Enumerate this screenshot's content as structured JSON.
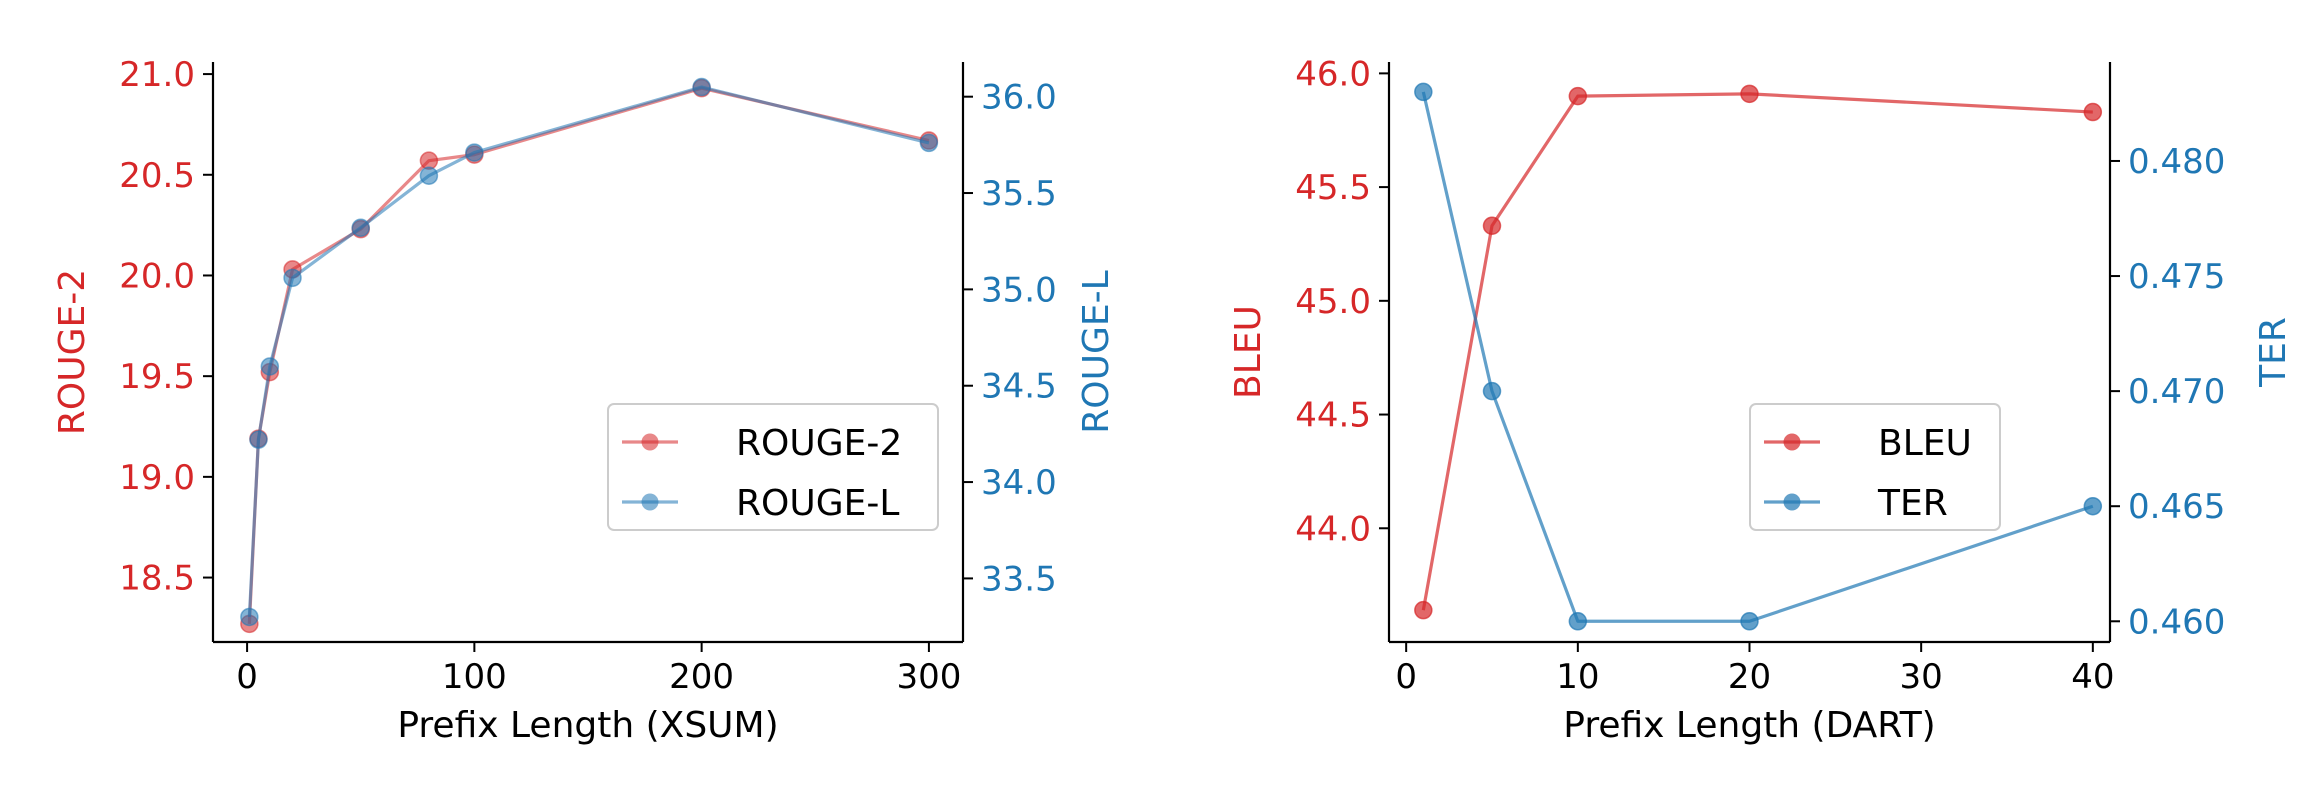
{
  "colors": {
    "left_axis": "#d62728",
    "right_axis": "#1f77b4",
    "axis_black": "#000000"
  },
  "chart_data": [
    {
      "type": "line",
      "xlabel": "Prefix Length (XSUM)",
      "ylabel_left": "ROUGE-2",
      "ylabel_right": "ROUGE-L",
      "xlim": [
        -15,
        315
      ],
      "ylim_left": [
        18.18,
        21.06
      ],
      "ylim_right": [
        33.17,
        36.18
      ],
      "xticks": [
        0,
        100,
        200,
        300
      ],
      "yticks_left": [
        18.5,
        19.0,
        19.5,
        20.0,
        20.5,
        21.0
      ],
      "yticks_right": [
        33.5,
        34.0,
        34.5,
        35.0,
        35.5,
        36.0
      ],
      "grid": false,
      "legend": "center-right",
      "series": [
        {
          "name": "ROUGE-2",
          "axis": "left",
          "color": "#d62728",
          "alpha": 0.55,
          "x": [
            1,
            5,
            10,
            20,
            50,
            80,
            100,
            200,
            300
          ],
          "y": [
            18.27,
            19.19,
            19.52,
            20.03,
            20.23,
            20.57,
            20.6,
            20.93,
            20.67
          ]
        },
        {
          "name": "ROUGE-L",
          "axis": "right",
          "color": "#1f77b4",
          "alpha": 0.55,
          "x": [
            1,
            5,
            10,
            20,
            50,
            80,
            100,
            200,
            300
          ],
          "y": [
            33.3,
            34.22,
            34.6,
            35.06,
            35.32,
            35.59,
            35.71,
            36.05,
            35.76
          ]
        }
      ]
    },
    {
      "type": "line",
      "xlabel": "Prefix Length (DART)",
      "ylabel_left": "BLEU",
      "ylabel_right": "TER",
      "xlim": [
        -1,
        41
      ],
      "ylim_left": [
        43.5,
        46.05
      ],
      "ylim_right": [
        0.4591,
        0.4843
      ],
      "xticks": [
        0,
        10,
        20,
        30,
        40
      ],
      "yticks_left": [
        44.0,
        44.5,
        45.0,
        45.5,
        46.0
      ],
      "yticks_right": [
        "0.460",
        "0.465",
        "0.470",
        "0.475",
        "0.480"
      ],
      "grid": false,
      "legend": "center-right",
      "series": [
        {
          "name": "BLEU",
          "axis": "left",
          "color": "#d62728",
          "alpha": 0.7,
          "x": [
            1,
            5,
            10,
            20,
            40
          ],
          "y": [
            43.64,
            45.33,
            45.9,
            45.91,
            45.83
          ]
        },
        {
          "name": "TER",
          "axis": "right",
          "color": "#1f77b4",
          "alpha": 0.7,
          "x": [
            1,
            5,
            10,
            20,
            40
          ],
          "y": [
            0.483,
            0.47,
            0.46,
            0.46,
            0.465
          ]
        }
      ]
    }
  ]
}
